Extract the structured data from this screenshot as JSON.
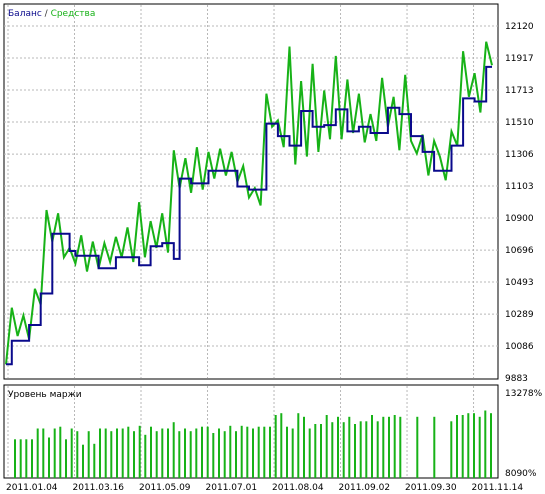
{
  "chart_data": [
    {
      "type": "line",
      "legend": {
        "balance_label": "Баланс",
        "separator": " / ",
        "equity_label": "Средства"
      },
      "colors": {
        "balance": "#0a0a8c",
        "equity": "#17b217",
        "grid": "#b8b8b8",
        "axis": "#000000"
      },
      "ylim": [
        9883,
        12120
      ],
      "y_ticks": [
        9883,
        10086,
        10289,
        10493,
        10696,
        10900,
        11103,
        11306,
        11510,
        11713,
        11917,
        12120
      ],
      "y_tick_labels": [
        "9883",
        "10086",
        "10289",
        "10493",
        "10696",
        "10900",
        "11103",
        "11306",
        "11510",
        "11713",
        "11917",
        "12120"
      ],
      "x_count": 85,
      "series": [
        {
          "name": "Баланс",
          "values": [
            9970,
            10120,
            10120,
            10120,
            10220,
            10220,
            10420,
            10420,
            10800,
            10800,
            10800,
            10690,
            10660,
            10660,
            10660,
            10660,
            10580,
            10580,
            10580,
            10650,
            10650,
            10650,
            10650,
            10600,
            10600,
            10720,
            10720,
            10740,
            10740,
            10640,
            11150,
            11150,
            11120,
            11120,
            11120,
            11200,
            11200,
            11200,
            11200,
            11200,
            11100,
            11100,
            11080,
            11080,
            11080,
            11500,
            11500,
            11420,
            11420,
            11360,
            11360,
            11580,
            11580,
            11480,
            11480,
            11490,
            11490,
            11590,
            11590,
            11450,
            11450,
            11480,
            11480,
            11440,
            11440,
            11440,
            11600,
            11600,
            11560,
            11560,
            11420,
            11420,
            11320,
            11320,
            11200,
            11200,
            11200,
            11360,
            11360,
            11660,
            11660,
            11640,
            11640,
            11860,
            11860
          ]
        },
        {
          "name": "Средства",
          "values": [
            9970,
            10330,
            10150,
            10280,
            10130,
            10450,
            10350,
            10950,
            10750,
            10930,
            10650,
            10710,
            10610,
            10790,
            10560,
            10750,
            10580,
            10740,
            10620,
            10780,
            10650,
            10840,
            10620,
            11000,
            10650,
            10880,
            10710,
            10930,
            10680,
            11330,
            11090,
            11280,
            11060,
            11350,
            11080,
            11320,
            11150,
            11340,
            11170,
            11320,
            11130,
            11230,
            11030,
            11090,
            10980,
            11690,
            11480,
            11520,
            11350,
            11990,
            11240,
            11770,
            11290,
            11880,
            11320,
            11710,
            11400,
            11930,
            11400,
            11780,
            11440,
            11690,
            11380,
            11560,
            11390,
            11790,
            11480,
            11670,
            11330,
            11810,
            11390,
            11310,
            11430,
            11170,
            11390,
            11290,
            11140,
            11450,
            11360,
            11960,
            11670,
            11820,
            11570,
            12020,
            11870
          ]
        }
      ]
    },
    {
      "type": "bar",
      "title": "Уровень маржи",
      "ylim": [
        "8090%",
        "13278%"
      ],
      "y_tick_labels": [
        "13278%",
        "8090%"
      ],
      "color": "#17b217",
      "values": [
        0.43,
        0.43,
        0.43,
        0.43,
        0.55,
        0.55,
        0.45,
        0.55,
        0.57,
        0.43,
        0.55,
        0.52,
        0.37,
        0.52,
        0.38,
        0.55,
        0.55,
        0.52,
        0.55,
        0.55,
        0.57,
        0.52,
        0.58,
        0.48,
        0.57,
        0.52,
        0.55,
        0.55,
        0.62,
        0.52,
        0.55,
        0.52,
        0.55,
        0.57,
        0.57,
        0.5,
        0.55,
        0.52,
        0.58,
        0.52,
        0.58,
        0.57,
        0.55,
        0.57,
        0.57,
        0.57,
        0.7,
        0.72,
        0.57,
        0.55,
        0.72,
        0.68,
        0.55,
        0.6,
        0.6,
        0.7,
        0.62,
        0.68,
        0.62,
        0.68,
        0.6,
        0.63,
        0.63,
        0.7,
        0.63,
        0.68,
        0.68,
        0.7,
        0.68,
        0,
        0,
        0.68,
        0,
        0,
        0.68,
        0,
        0,
        0.63,
        0.7,
        0.7,
        0.72,
        0.72,
        0.68,
        0.75,
        0.72
      ],
      "x_tick_labels": [
        {
          "label": "2011.01.04",
          "index": 0
        },
        {
          "label": "2011.03.16",
          "index": 13
        },
        {
          "label": "2011.05.09",
          "index": 26
        },
        {
          "label": "2011.07.01",
          "index": 39
        },
        {
          "label": "2011.08.04",
          "index": 52
        },
        {
          "label": "2011.09.02",
          "index": 65
        },
        {
          "label": "2011.09.30",
          "index": 78
        },
        {
          "label": "2011.11.14",
          "index": 91
        }
      ]
    }
  ]
}
